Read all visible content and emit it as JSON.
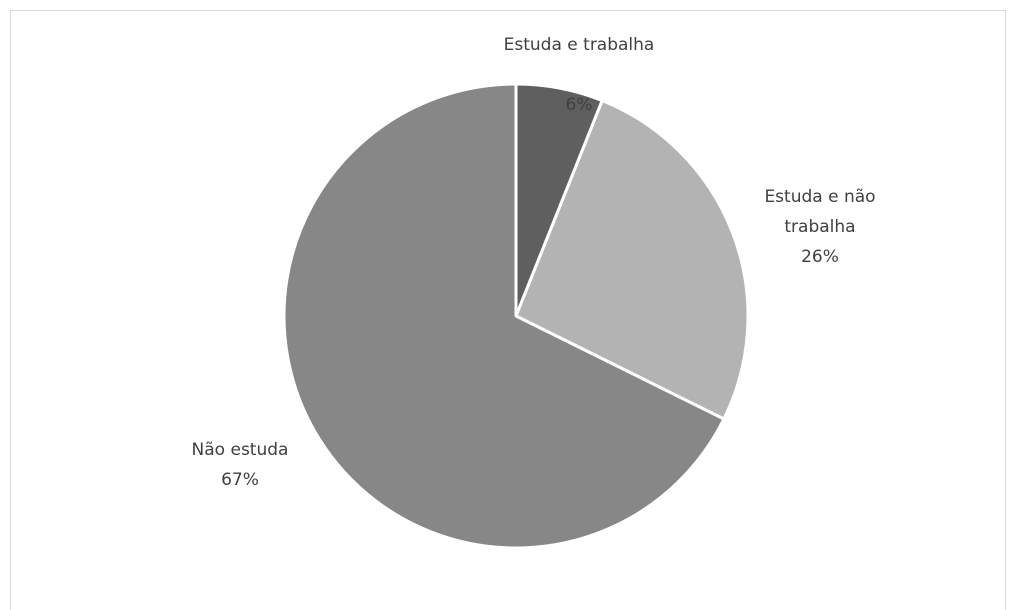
{
  "chart_data": {
    "type": "pie",
    "categories": [
      "Estuda e trabalha",
      "Estuda e não trabalha",
      "Não estuda"
    ],
    "values": [
      6,
      26,
      67
    ],
    "value_labels": [
      "6%",
      "26%",
      "67%"
    ],
    "colors": [
      "#5f5f5f",
      "#b3b3b3",
      "#878787"
    ]
  }
}
